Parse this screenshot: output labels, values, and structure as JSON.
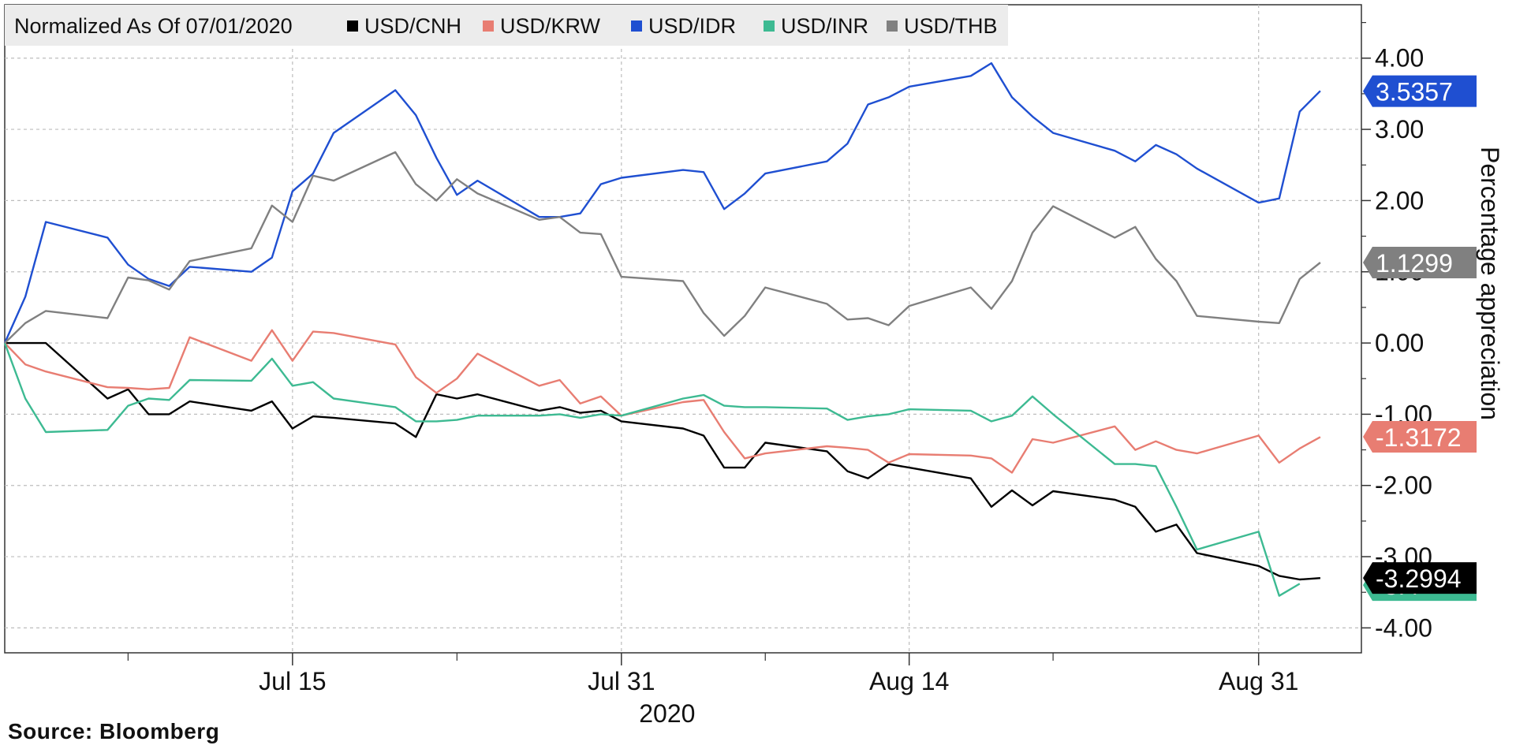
{
  "source_note": "Source: Bloomberg",
  "chart_data": {
    "type": "line",
    "title": "Normalized As Of 07/01/2020",
    "ylabel": "Percentage appreciation",
    "year_label": "2020",
    "ylim": [
      -4.35,
      4.75
    ],
    "yticks": [
      4,
      3,
      2,
      1,
      0,
      -1,
      -2,
      -3,
      -4
    ],
    "ytick_labels": [
      "4.00",
      "3.00",
      "2.00",
      "1.00",
      "0.00",
      "-1.00",
      "-2.00",
      "-3.00",
      "-4.00"
    ],
    "x_dates": [
      "2020-07-01",
      "2020-07-02",
      "2020-07-03",
      "2020-07-06",
      "2020-07-07",
      "2020-07-08",
      "2020-07-09",
      "2020-07-10",
      "2020-07-13",
      "2020-07-14",
      "2020-07-15",
      "2020-07-16",
      "2020-07-17",
      "2020-07-20",
      "2020-07-21",
      "2020-07-22",
      "2020-07-23",
      "2020-07-24",
      "2020-07-27",
      "2020-07-28",
      "2020-07-29",
      "2020-07-30",
      "2020-07-31",
      "2020-08-03",
      "2020-08-04",
      "2020-08-05",
      "2020-08-06",
      "2020-08-07",
      "2020-08-10",
      "2020-08-11",
      "2020-08-12",
      "2020-08-13",
      "2020-08-14",
      "2020-08-17",
      "2020-08-18",
      "2020-08-19",
      "2020-08-20",
      "2020-08-21",
      "2020-08-24",
      "2020-08-25",
      "2020-08-26",
      "2020-08-27",
      "2020-08-28",
      "2020-08-31",
      "2020-09-01",
      "2020-09-02",
      "2020-09-03"
    ],
    "xlim": [
      "2020-07-01",
      "2020-09-05"
    ],
    "xticks": [
      {
        "date": "2020-07-15",
        "label": "Jul 15"
      },
      {
        "date": "2020-07-31",
        "label": "Jul 31"
      },
      {
        "date": "2020-08-14",
        "label": "Aug 14"
      },
      {
        "date": "2020-08-31",
        "label": "Aug 31"
      }
    ],
    "x_minor_ticks": [
      "2020-07-07",
      "2020-07-23",
      "2020-08-07",
      "2020-08-21"
    ],
    "grid": true,
    "legend_position": "top-left",
    "series": [
      {
        "name": "USD/CNH",
        "color": "#000000",
        "last_value": "-3.2994",
        "values": [
          0,
          0,
          0,
          -0.78,
          -0.65,
          -1.0,
          -1.0,
          -0.82,
          -0.95,
          -0.82,
          -1.2,
          -1.03,
          -1.05,
          -1.13,
          -1.32,
          -0.72,
          -0.78,
          -0.72,
          -0.95,
          -0.9,
          -0.98,
          -0.95,
          -1.1,
          -1.2,
          -1.3,
          -1.75,
          -1.75,
          -1.4,
          -1.52,
          -1.8,
          -1.9,
          -1.7,
          -1.75,
          -1.9,
          -2.3,
          -2.07,
          -2.28,
          -2.08,
          -2.2,
          -2.3,
          -2.65,
          -2.55,
          -2.95,
          -3.13,
          -3.27,
          -3.32,
          -3.3
        ]
      },
      {
        "name": "USD/KRW",
        "color": "#e87d72",
        "last_value": "-1.3172",
        "values": [
          0,
          -0.3,
          -0.4,
          -0.62,
          -0.63,
          -0.65,
          -0.63,
          0.08,
          -0.25,
          0.18,
          -0.25,
          0.16,
          0.14,
          -0.02,
          -0.48,
          -0.7,
          -0.5,
          -0.15,
          -0.6,
          -0.52,
          -0.85,
          -0.75,
          -1.02,
          -0.83,
          -0.8,
          -1.25,
          -1.62,
          -1.55,
          -1.45,
          -1.47,
          -1.5,
          -1.68,
          -1.56,
          -1.58,
          -1.62,
          -1.82,
          -1.35,
          -1.4,
          -1.17,
          -1.5,
          -1.38,
          -1.5,
          -1.55,
          -1.3,
          -1.68,
          -1.48,
          -1.32
        ]
      },
      {
        "name": "USD/IDR",
        "color": "#1f4fd1",
        "last_value": "3.5357",
        "values": [
          0,
          0.65,
          1.7,
          1.48,
          1.1,
          0.9,
          0.8,
          1.07,
          1.0,
          1.2,
          2.13,
          2.38,
          2.95,
          3.55,
          3.2,
          2.6,
          2.08,
          2.28,
          1.77,
          1.77,
          1.82,
          2.23,
          2.32,
          2.43,
          2.4,
          1.88,
          2.1,
          2.38,
          2.55,
          2.8,
          3.35,
          3.45,
          3.6,
          3.75,
          3.93,
          3.45,
          3.18,
          2.95,
          2.7,
          2.55,
          2.78,
          2.65,
          2.45,
          1.97,
          2.03,
          3.25,
          3.54
        ]
      },
      {
        "name": "USD/INR",
        "color": "#3dba92",
        "last_value": "-3.4",
        "values": [
          0,
          -0.78,
          -1.25,
          -1.22,
          -0.88,
          -0.78,
          -0.8,
          -0.52,
          -0.53,
          -0.22,
          -0.6,
          -0.55,
          -0.78,
          -0.9,
          -1.1,
          -1.1,
          -1.08,
          -1.02,
          -1.02,
          -1.0,
          -1.05,
          -1.0,
          -1.02,
          -0.78,
          -0.73,
          -0.88,
          -0.9,
          -0.9,
          -0.92,
          -1.08,
          -1.03,
          -1.0,
          -0.93,
          -0.95,
          -1.1,
          -1.02,
          -0.75,
          -1.0,
          -1.7,
          -1.7,
          -1.73,
          -2.3,
          -2.9,
          -2.65,
          -3.55,
          -3.38,
          null
        ]
      },
      {
        "name": "USD/THB",
        "color": "#808080",
        "last_value": "1.1299",
        "values": [
          0,
          0.28,
          0.45,
          0.35,
          0.92,
          0.88,
          0.75,
          1.15,
          1.33,
          1.93,
          1.7,
          2.35,
          2.28,
          2.68,
          2.23,
          2.0,
          2.3,
          2.1,
          1.73,
          1.77,
          1.55,
          1.53,
          0.93,
          0.87,
          0.42,
          0.1,
          0.38,
          0.78,
          0.55,
          0.33,
          0.35,
          0.25,
          0.52,
          0.78,
          0.48,
          0.87,
          1.55,
          1.92,
          1.48,
          1.63,
          1.18,
          0.87,
          0.38,
          0.3,
          0.28,
          0.9,
          1.13
        ]
      }
    ]
  }
}
